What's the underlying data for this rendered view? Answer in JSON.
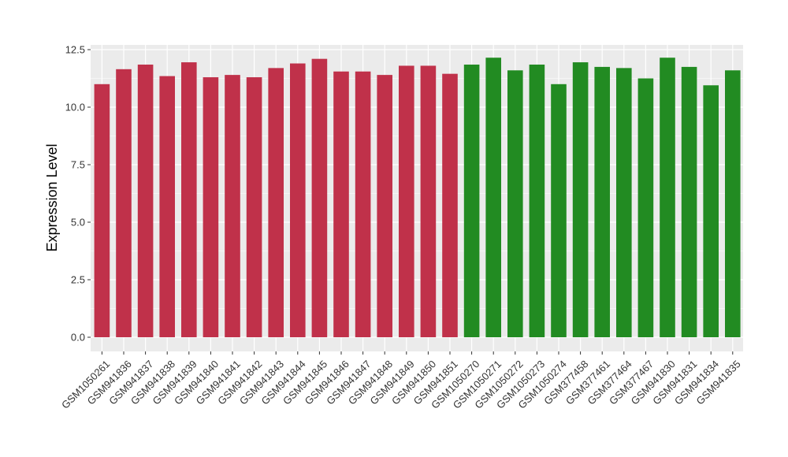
{
  "chart_data": {
    "type": "bar",
    "title": "",
    "xlabel": "",
    "ylabel": "Expression Level",
    "ylim": [
      0,
      12.7
    ],
    "yticks": [
      "0.0",
      "2.5",
      "5.0",
      "7.5",
      "10.0",
      "12.5"
    ],
    "grid": true,
    "legend": "none",
    "colors": {
      "group_1": "#c0314a",
      "group_2": "#228b22",
      "panel_bg": "#ebebeb",
      "grid": "#ffffff"
    },
    "categories": [
      "GSM1050261",
      "GSM941836",
      "GSM941837",
      "GSM941838",
      "GSM941839",
      "GSM941840",
      "GSM941841",
      "GSM941842",
      "GSM941843",
      "GSM941844",
      "GSM941845",
      "GSM941846",
      "GSM941847",
      "GSM941848",
      "GSM941849",
      "GSM941850",
      "GSM941851",
      "GSM1050270",
      "GSM1050271",
      "GSM1050272",
      "GSM1050273",
      "GSM1050274",
      "GSM377458",
      "GSM377461",
      "GSM377464",
      "GSM377467",
      "GSM941830",
      "GSM941831",
      "GSM941834",
      "GSM941835"
    ],
    "values": [
      11.0,
      11.65,
      11.85,
      11.35,
      11.95,
      11.3,
      11.4,
      11.3,
      11.7,
      11.9,
      12.1,
      11.55,
      11.55,
      11.4,
      11.8,
      11.8,
      11.45,
      11.85,
      12.15,
      11.6,
      11.85,
      11.0,
      11.95,
      11.75,
      11.7,
      11.25,
      12.15,
      11.75,
      10.95,
      11.6
    ],
    "groups": [
      1,
      1,
      1,
      1,
      1,
      1,
      1,
      1,
      1,
      1,
      1,
      1,
      1,
      1,
      1,
      1,
      1,
      2,
      2,
      2,
      2,
      2,
      2,
      2,
      2,
      2,
      2,
      2,
      2,
      2
    ]
  }
}
